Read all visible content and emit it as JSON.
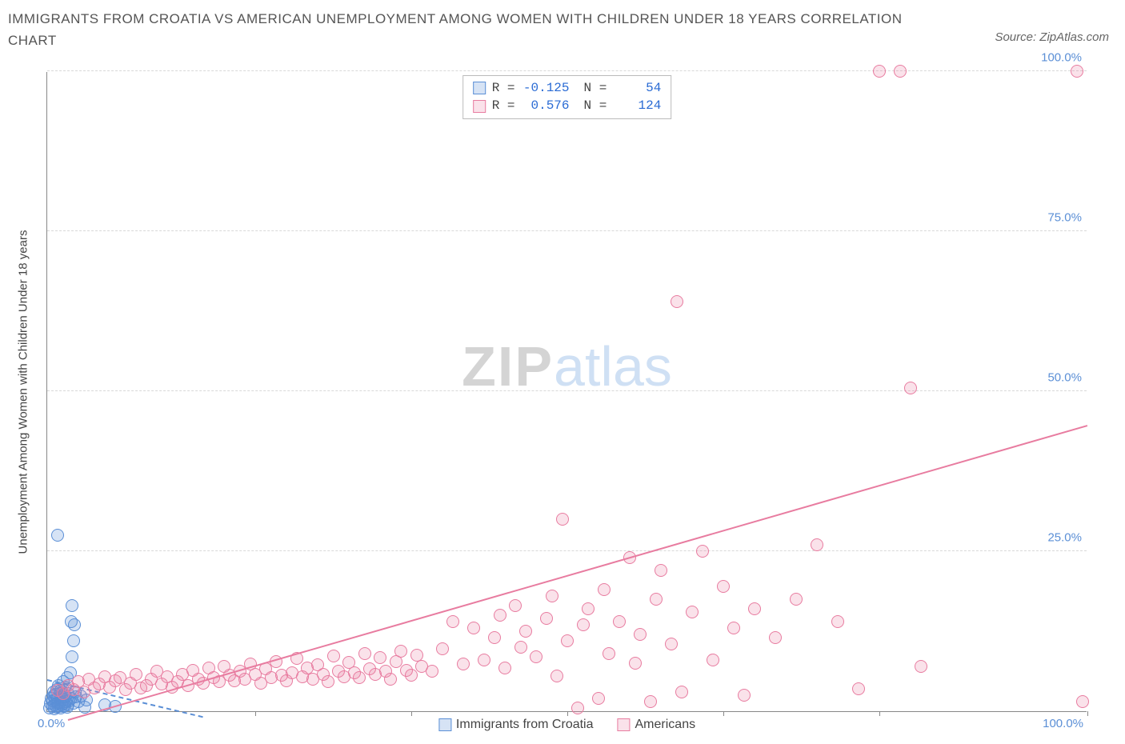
{
  "title": "IMMIGRANTS FROM CROATIA VS AMERICAN UNEMPLOYMENT AMONG WOMEN WITH CHILDREN UNDER 18 YEARS CORRELATION CHART",
  "source": "Source: ZipAtlas.com",
  "y_axis_title": "Unemployment Among Women with Children Under 18 years",
  "watermark_a": "ZIP",
  "watermark_b": "atlas",
  "axes": {
    "xlim": [
      0,
      100
    ],
    "ylim": [
      0,
      100
    ],
    "y_ticks": [
      25,
      50,
      75,
      100
    ],
    "y_tick_labels": [
      "25.0%",
      "50.0%",
      "75.0%",
      "100.0%"
    ],
    "x_origin_label": "0.0%",
    "x_end_label": "100.0%",
    "x_ticks_at": [
      20,
      35,
      50,
      65,
      80,
      100
    ],
    "grid_color": "#d8d8d8",
    "axis_line_color": "#888888",
    "tick_label_color": "#5b8fd6"
  },
  "chart": {
    "type": "scatter",
    "background_color": "#ffffff",
    "point_radius": 8,
    "point_border_width": 1.4,
    "point_fill_opacity": 0.25
  },
  "series": [
    {
      "name": "Immigrants from Croatia",
      "color": "#5b8fd6",
      "fill": "rgba(91,143,214,0.25)",
      "R": "-0.125",
      "N": "54",
      "trend": {
        "x1": 0,
        "y1": 4.8,
        "x2": 15,
        "y2": -1.0,
        "dash": "5,4",
        "width": 2
      },
      "points": [
        [
          0.2,
          0.5
        ],
        [
          0.3,
          1.2
        ],
        [
          0.4,
          2.0
        ],
        [
          0.5,
          0.8
        ],
        [
          0.5,
          1.6
        ],
        [
          0.6,
          2.4
        ],
        [
          0.6,
          3.0
        ],
        [
          0.7,
          0.4
        ],
        [
          0.7,
          1.0
        ],
        [
          0.8,
          1.8
        ],
        [
          0.8,
          2.6
        ],
        [
          0.9,
          0.6
        ],
        [
          0.9,
          3.4
        ],
        [
          1.0,
          1.2
        ],
        [
          1.0,
          2.0
        ],
        [
          1.1,
          0.8
        ],
        [
          1.1,
          4.0
        ],
        [
          1.2,
          1.4
        ],
        [
          1.2,
          2.8
        ],
        [
          1.3,
          0.5
        ],
        [
          1.3,
          3.2
        ],
        [
          1.4,
          1.0
        ],
        [
          1.4,
          2.2
        ],
        [
          1.5,
          0.7
        ],
        [
          1.5,
          1.8
        ],
        [
          1.5,
          4.6
        ],
        [
          1.6,
          1.2
        ],
        [
          1.6,
          2.6
        ],
        [
          1.7,
          0.9
        ],
        [
          1.7,
          3.8
        ],
        [
          1.8,
          1.5
        ],
        [
          1.8,
          2.2
        ],
        [
          1.9,
          0.6
        ],
        [
          1.9,
          5.2
        ],
        [
          2.0,
          1.0
        ],
        [
          2.0,
          2.8
        ],
        [
          2.1,
          1.6
        ],
        [
          2.2,
          6.0
        ],
        [
          2.3,
          2.0
        ],
        [
          2.4,
          8.5
        ],
        [
          2.5,
          1.2
        ],
        [
          2.5,
          11.0
        ],
        [
          2.6,
          13.5
        ],
        [
          2.7,
          3.0
        ],
        [
          2.8,
          2.2
        ],
        [
          3.0,
          1.5
        ],
        [
          3.2,
          2.4
        ],
        [
          3.6,
          0.6
        ],
        [
          3.8,
          1.8
        ],
        [
          1.0,
          27.5
        ],
        [
          2.3,
          14.0
        ],
        [
          2.4,
          16.5
        ],
        [
          5.5,
          1.0
        ],
        [
          6.5,
          0.8
        ]
      ]
    },
    {
      "name": "Americans",
      "color": "#e87ca0",
      "fill": "rgba(232,124,160,0.22)",
      "R": "0.576",
      "N": "124",
      "trend": {
        "x1": 2,
        "y1": -1.5,
        "x2": 100,
        "y2": 44.5,
        "dash": "none",
        "width": 2.3
      },
      "points": [
        [
          1.0,
          3.2
        ],
        [
          1.5,
          2.8
        ],
        [
          2.0,
          4.0
        ],
        [
          2.5,
          3.4
        ],
        [
          3.0,
          4.6
        ],
        [
          3.5,
          3.0
        ],
        [
          4.0,
          5.0
        ],
        [
          4.5,
          3.6
        ],
        [
          5.0,
          4.2
        ],
        [
          5.5,
          5.4
        ],
        [
          6.0,
          3.8
        ],
        [
          6.5,
          4.8
        ],
        [
          7.0,
          5.2
        ],
        [
          7.5,
          3.4
        ],
        [
          8.0,
          4.4
        ],
        [
          8.5,
          5.8
        ],
        [
          9.0,
          3.6
        ],
        [
          9.5,
          4.0
        ],
        [
          10.0,
          5.0
        ],
        [
          10.5,
          6.2
        ],
        [
          11.0,
          4.2
        ],
        [
          11.5,
          5.4
        ],
        [
          12.0,
          3.8
        ],
        [
          12.5,
          4.6
        ],
        [
          13.0,
          5.8
        ],
        [
          13.5,
          4.0
        ],
        [
          14.0,
          6.4
        ],
        [
          14.5,
          5.0
        ],
        [
          15.0,
          4.4
        ],
        [
          15.5,
          6.8
        ],
        [
          16.0,
          5.2
        ],
        [
          16.5,
          4.6
        ],
        [
          17.0,
          7.0
        ],
        [
          17.5,
          5.6
        ],
        [
          18.0,
          4.8
        ],
        [
          18.5,
          6.2
        ],
        [
          19.0,
          5.0
        ],
        [
          19.5,
          7.4
        ],
        [
          20.0,
          5.8
        ],
        [
          20.5,
          4.4
        ],
        [
          21.0,
          6.6
        ],
        [
          21.5,
          5.2
        ],
        [
          22.0,
          7.8
        ],
        [
          22.5,
          5.6
        ],
        [
          23.0,
          4.8
        ],
        [
          23.5,
          6.0
        ],
        [
          24.0,
          8.2
        ],
        [
          24.5,
          5.4
        ],
        [
          25.0,
          6.8
        ],
        [
          25.5,
          5.0
        ],
        [
          26.0,
          7.2
        ],
        [
          26.5,
          5.8
        ],
        [
          27.0,
          4.6
        ],
        [
          27.5,
          8.6
        ],
        [
          28.0,
          6.2
        ],
        [
          28.5,
          5.4
        ],
        [
          29.0,
          7.6
        ],
        [
          29.5,
          6.0
        ],
        [
          30.0,
          5.2
        ],
        [
          30.5,
          9.0
        ],
        [
          31.0,
          6.6
        ],
        [
          31.5,
          5.8
        ],
        [
          32.0,
          8.4
        ],
        [
          32.5,
          6.2
        ],
        [
          33.0,
          5.0
        ],
        [
          33.5,
          7.8
        ],
        [
          34.0,
          9.4
        ],
        [
          34.5,
          6.4
        ],
        [
          35.0,
          5.6
        ],
        [
          35.5,
          8.8
        ],
        [
          36.0,
          7.0
        ],
        [
          37.0,
          6.2
        ],
        [
          38.0,
          9.8
        ],
        [
          39.0,
          14.0
        ],
        [
          40.0,
          7.4
        ],
        [
          41.0,
          13.0
        ],
        [
          42.0,
          8.0
        ],
        [
          43.0,
          11.5
        ],
        [
          43.5,
          15.0
        ],
        [
          44.0,
          6.8
        ],
        [
          45.0,
          16.5
        ],
        [
          45.5,
          10.0
        ],
        [
          46.0,
          12.5
        ],
        [
          47.0,
          8.5
        ],
        [
          48.0,
          14.5
        ],
        [
          48.5,
          18.0
        ],
        [
          49.0,
          5.5
        ],
        [
          49.5,
          30.0
        ],
        [
          50.0,
          11.0
        ],
        [
          51.0,
          0.5
        ],
        [
          51.5,
          13.5
        ],
        [
          52.0,
          16.0
        ],
        [
          53.0,
          2.0
        ],
        [
          53.5,
          19.0
        ],
        [
          54.0,
          9.0
        ],
        [
          55.0,
          14.0
        ],
        [
          56.0,
          24.0
        ],
        [
          56.5,
          7.5
        ],
        [
          57.0,
          12.0
        ],
        [
          58.0,
          1.5
        ],
        [
          58.5,
          17.5
        ],
        [
          59.0,
          22.0
        ],
        [
          60.0,
          10.5
        ],
        [
          60.5,
          64.0
        ],
        [
          61.0,
          3.0
        ],
        [
          62.0,
          15.5
        ],
        [
          63.0,
          25.0
        ],
        [
          64.0,
          8.0
        ],
        [
          65.0,
          19.5
        ],
        [
          66.0,
          13.0
        ],
        [
          67.0,
          2.5
        ],
        [
          68.0,
          16.0
        ],
        [
          70.0,
          11.5
        ],
        [
          72.0,
          17.5
        ],
        [
          74.0,
          26.0
        ],
        [
          76.0,
          14.0
        ],
        [
          78.0,
          3.5
        ],
        [
          80.0,
          100.0
        ],
        [
          82.0,
          100.0
        ],
        [
          83.0,
          50.5
        ],
        [
          84.0,
          7.0
        ],
        [
          99.0,
          100.0
        ],
        [
          99.5,
          1.5
        ]
      ]
    }
  ],
  "legend_top": {
    "R_label": "R =",
    "N_label": "N ="
  },
  "legend_bottom_labels": [
    "Immigrants from Croatia",
    "Americans"
  ]
}
